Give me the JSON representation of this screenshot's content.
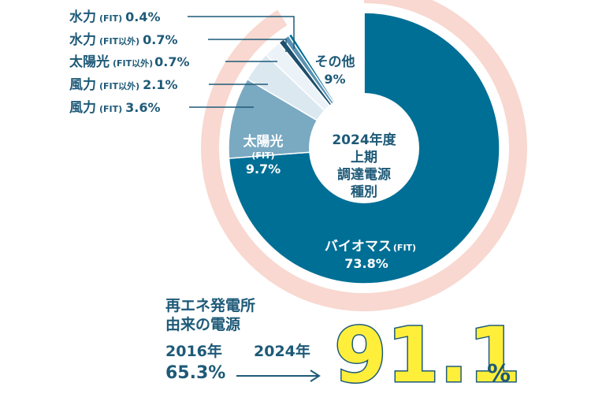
{
  "chart_data": {
    "type": "pie",
    "center_label": [
      "2024年度",
      "上期",
      "調達電源",
      "種別"
    ],
    "slices": [
      {
        "name": "バイオマス",
        "tag": "(FIT)",
        "value": 73.8,
        "color": "#006f95"
      },
      {
        "name": "太陽光",
        "tag": "(FIT)",
        "value": 9.7,
        "color": "#7aa9c2"
      },
      {
        "name": "風力",
        "tag": "(FIT)",
        "value": 3.6,
        "color": "#dbe8f0"
      },
      {
        "name": "風力",
        "tag": "(FIT以外)",
        "value": 2.1,
        "color": "#ecf3f8"
      },
      {
        "name": "太陽光",
        "tag": "(FIT以外)",
        "value": 0.7,
        "color": "#1d4e6b"
      },
      {
        "name": "水力",
        "tag": "(FIT以外)",
        "value": 0.7,
        "color": "#5a91b2"
      },
      {
        "name": "水力",
        "tag": "(FIT)",
        "value": 0.4,
        "color": "#006f95"
      },
      {
        "name": "その他",
        "tag": "",
        "value": 9,
        "color": "#ffffff"
      }
    ],
    "outer_ring": {
      "value": 91.1,
      "color": "#f8d8d0"
    }
  },
  "labels": {
    "biomass": {
      "name": "バイオマス",
      "tag": "(FIT)",
      "value": "73.8%"
    },
    "solar_fit": {
      "name": "太陽光",
      "tag": "(FIT)",
      "value": "9.7%"
    },
    "other": {
      "name": "その他",
      "value": "9%"
    },
    "callouts": [
      {
        "name": "水力",
        "tag": "(FIT)",
        "value": "0.4%"
      },
      {
        "name": "水力",
        "tag": "(FIT以外)",
        "value": "0.7%"
      },
      {
        "name": "太陽光",
        "tag": "(FIT以外)",
        "value": "0.7%"
      },
      {
        "name": "風力",
        "tag": "(FIT以外)",
        "value": "2.1%"
      },
      {
        "name": "風力",
        "tag": "(FIT)",
        "value": "3.6%"
      }
    ]
  },
  "summary": {
    "heading_line1": "再エネ発電所",
    "heading_line2": "由来の電源",
    "year_from": "2016年",
    "value_from": "65.3%",
    "year_to": "2024年",
    "value_to": "91.1",
    "unit": "%"
  },
  "colors": {
    "text": "#1e5a78",
    "ring": "#f8d8d0",
    "highlight": "#ffef3a"
  }
}
